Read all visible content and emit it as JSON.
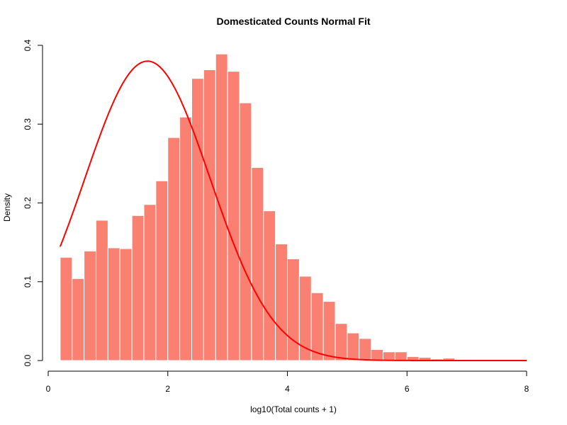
{
  "chart_data": {
    "type": "bar",
    "title": "Domesticated Counts Normal Fit",
    "xlabel": "log10(Total counts + 1)",
    "ylabel": "Density",
    "xlim": [
      0,
      8
    ],
    "ylim": [
      0,
      0.4
    ],
    "x_ticks": [
      "0",
      "2",
      "4",
      "6",
      "8"
    ],
    "y_ticks": [
      "0.0",
      "0.1",
      "0.2",
      "0.3",
      "0.4"
    ],
    "bar_color": "#fa8072",
    "bar_edge_color": "#ffffff",
    "curve_color": "#ff0000",
    "bins": [
      {
        "x0": 0.2,
        "x1": 0.4,
        "density": 0.131
      },
      {
        "x0": 0.4,
        "x1": 0.6,
        "density": 0.104
      },
      {
        "x0": 0.6,
        "x1": 0.8,
        "density": 0.139
      },
      {
        "x0": 0.8,
        "x1": 1.0,
        "density": 0.178
      },
      {
        "x0": 1.0,
        "x1": 1.2,
        "density": 0.143
      },
      {
        "x0": 1.2,
        "x1": 1.4,
        "density": 0.142
      },
      {
        "x0": 1.4,
        "x1": 1.6,
        "density": 0.184
      },
      {
        "x0": 1.6,
        "x1": 1.8,
        "density": 0.198
      },
      {
        "x0": 1.8,
        "x1": 2.0,
        "density": 0.228
      },
      {
        "x0": 2.0,
        "x1": 2.2,
        "density": 0.283
      },
      {
        "x0": 2.2,
        "x1": 2.4,
        "density": 0.309
      },
      {
        "x0": 2.4,
        "x1": 2.6,
        "density": 0.358
      },
      {
        "x0": 2.6,
        "x1": 2.8,
        "density": 0.369
      },
      {
        "x0": 2.8,
        "x1": 3.0,
        "density": 0.389
      },
      {
        "x0": 3.0,
        "x1": 3.2,
        "density": 0.367
      },
      {
        "x0": 3.2,
        "x1": 3.4,
        "density": 0.327
      },
      {
        "x0": 3.4,
        "x1": 3.6,
        "density": 0.245
      },
      {
        "x0": 3.6,
        "x1": 3.8,
        "density": 0.19
      },
      {
        "x0": 3.8,
        "x1": 4.0,
        "density": 0.148
      },
      {
        "x0": 4.0,
        "x1": 4.2,
        "density": 0.129
      },
      {
        "x0": 4.2,
        "x1": 4.4,
        "density": 0.107
      },
      {
        "x0": 4.4,
        "x1": 4.6,
        "density": 0.086
      },
      {
        "x0": 4.6,
        "x1": 4.8,
        "density": 0.075
      },
      {
        "x0": 4.8,
        "x1": 5.0,
        "density": 0.047
      },
      {
        "x0": 5.0,
        "x1": 5.2,
        "density": 0.035
      },
      {
        "x0": 5.2,
        "x1": 5.4,
        "density": 0.028
      },
      {
        "x0": 5.4,
        "x1": 5.6,
        "density": 0.014
      },
      {
        "x0": 5.6,
        "x1": 5.8,
        "density": 0.011
      },
      {
        "x0": 5.8,
        "x1": 6.0,
        "density": 0.011
      },
      {
        "x0": 6.0,
        "x1": 6.2,
        "density": 0.005
      },
      {
        "x0": 6.2,
        "x1": 6.4,
        "density": 0.004
      },
      {
        "x0": 6.4,
        "x1": 6.6,
        "density": 0.002
      },
      {
        "x0": 6.6,
        "x1": 6.8,
        "density": 0.003
      }
    ],
    "normal_fit": {
      "mean": 1.66,
      "sd": 1.05,
      "x_from": 0.2,
      "x_to": 8.0
    }
  }
}
